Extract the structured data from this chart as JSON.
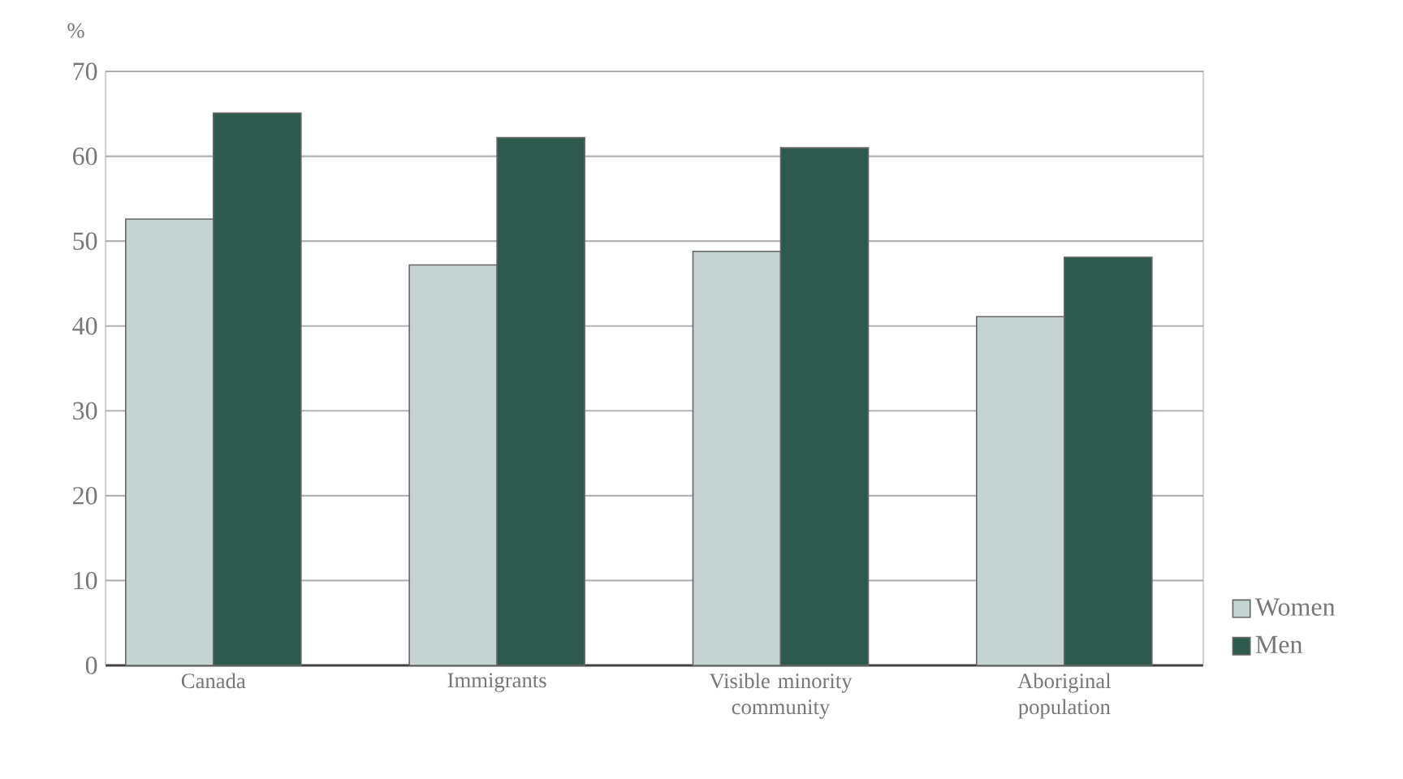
{
  "chart_data": {
    "type": "bar",
    "ylabel": "%",
    "categories": [
      "Canada",
      "Immigrants",
      "Visible minority community",
      "Aboriginal population"
    ],
    "series": [
      {
        "name": "Women",
        "color": "#c5d3d2",
        "values": [
          52.6,
          47.2,
          48.8,
          41.1
        ]
      },
      {
        "name": "Men",
        "color": "#2e5a4e",
        "values": [
          65.1,
          62.2,
          61.0,
          48.1
        ]
      }
    ],
    "ylim": [
      0,
      70
    ],
    "yticks": [
      0,
      10,
      20,
      30,
      40,
      50,
      60,
      70
    ],
    "grid": "y",
    "legend": "bottom right"
  }
}
